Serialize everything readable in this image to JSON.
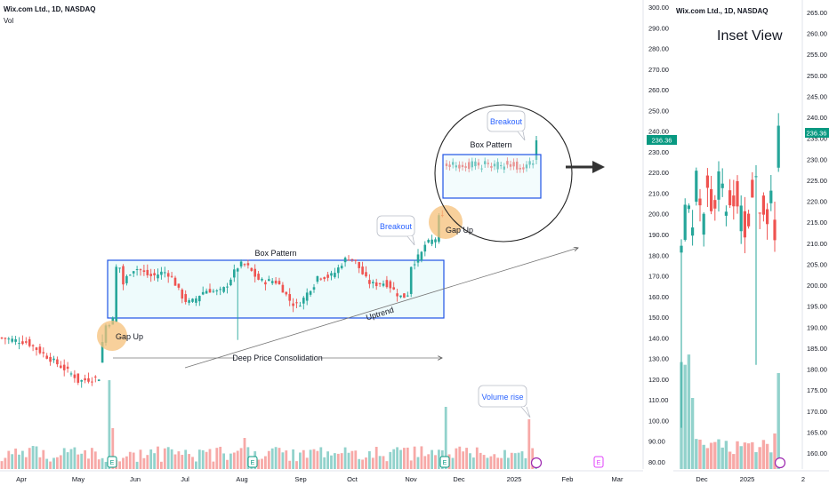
{
  "main": {
    "symbol_label": "Wix.com Ltd., 1D, NASDAQ",
    "volume_label": "Vol",
    "price_axis_ticks": [
      "300.00",
      "290.00",
      "280.00",
      "270.00",
      "260.00",
      "250.00",
      "240.00",
      "230.00",
      "220.00",
      "210.00",
      "200.00",
      "190.00",
      "180.00",
      "170.00",
      "160.00",
      "150.00",
      "140.00",
      "130.00",
      "120.00",
      "110.00",
      "100.00",
      "90.00",
      "80.00"
    ],
    "time_axis_ticks": [
      "Apr",
      "May",
      "Jun",
      "Jul",
      "Aug",
      "Sep",
      "Oct",
      "Nov",
      "Dec",
      "2025",
      "Feb",
      "Mar"
    ],
    "last_price": "236.36"
  },
  "inset": {
    "symbol_label": "Wix.com Ltd., 1D, NASDAQ",
    "title": "Inset View",
    "price_axis_ticks": [
      "265.00",
      "260.00",
      "255.00",
      "250.00",
      "245.00",
      "240.00",
      "235.00",
      "230.00",
      "225.00",
      "220.00",
      "215.00",
      "210.00",
      "205.00",
      "200.00",
      "195.00",
      "190.00",
      "185.00",
      "180.00",
      "175.00",
      "170.00",
      "165.00",
      "160.00"
    ],
    "time_axis_ticks": [
      "Dec",
      "2025",
      "2"
    ],
    "last_price": "236.36"
  },
  "annotations": {
    "box_pattern_1": "Box Pattern",
    "box_pattern_2": "Box Pattern",
    "gap_up_1": "Gap Up",
    "gap_up_2": "Gap Up",
    "breakout_1": "Breakout",
    "breakout_2": "Breakout",
    "uptrend": "Uptrend",
    "consolidation": "Deep Price Consolidation",
    "volume_rise": "Volume rise"
  },
  "colors": {
    "up": "#26a69a",
    "down": "#ef5350",
    "box": "#1e53e5",
    "gap": "#f5c07a",
    "callout_text": "#2962ff",
    "badge": "#089981"
  },
  "chart_data": [
    {
      "type": "candlestick",
      "name": "main",
      "x_range": [
        "Apr",
        "Mar"
      ],
      "ylim": [
        80,
        300
      ],
      "segments": [
        {
          "from": "Apr",
          "to": "mid-May",
          "start": 141,
          "end": 120
        },
        {
          "from": "mid-May",
          "to": "late-May",
          "start": 120,
          "end": 146
        },
        {
          "from": "late-May",
          "to": "early Nov",
          "low": 153,
          "high": 180,
          "note": "box consolidation"
        },
        {
          "from": "mid-Nov",
          "to": "late-Nov",
          "start": 178,
          "end": 198
        },
        {
          "from": "Dec",
          "to": "Jan",
          "low": 213,
          "high": 226
        },
        {
          "from": "Jan",
          "to": "Jan",
          "end": 236.36
        }
      ]
    },
    {
      "type": "candlestick",
      "name": "inset",
      "x_range": [
        "Dec",
        "2"
      ],
      "ylim": [
        160,
        265
      ],
      "last": 236.36
    }
  ]
}
